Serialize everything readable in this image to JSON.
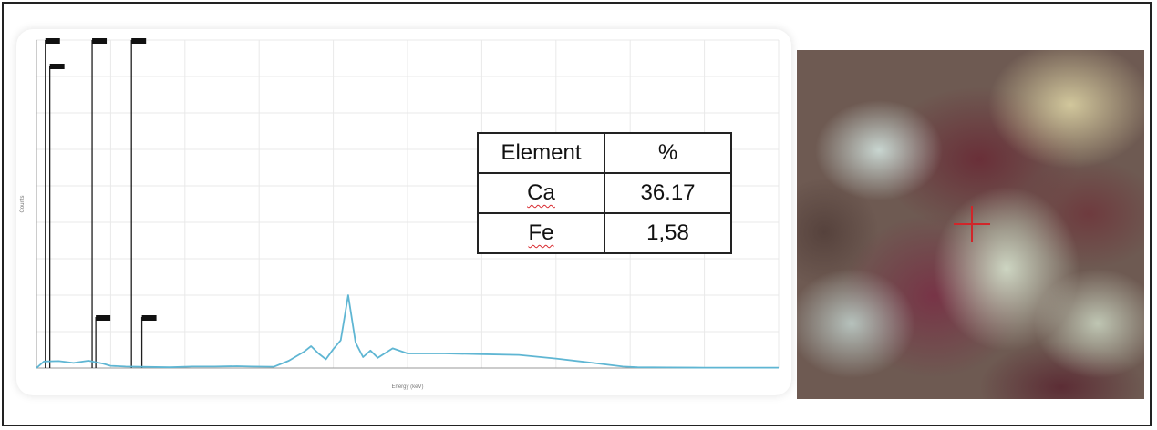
{
  "chart_data": {
    "type": "line",
    "xlabel": "Energy (keV)",
    "ylabel": "Counts",
    "xlim": [
      0,
      10
    ],
    "ylim": [
      0,
      4500
    ],
    "grid": true,
    "line_color": "#5fb6d3",
    "x": [
      0.0,
      0.1,
      0.3,
      0.5,
      0.7,
      0.9,
      1.0,
      1.2,
      1.5,
      1.8,
      2.1,
      2.4,
      2.7,
      2.9,
      3.2,
      3.4,
      3.6,
      3.7,
      3.8,
      3.9,
      4.0,
      4.1,
      4.2,
      4.3,
      4.4,
      4.5,
      4.6,
      4.8,
      5.0,
      5.5,
      6.0,
      6.5,
      7.0,
      7.5,
      7.9,
      8.1,
      8.5,
      9.0,
      9.5,
      10.0
    ],
    "y": [
      0,
      90,
      95,
      70,
      100,
      60,
      30,
      20,
      15,
      10,
      20,
      20,
      25,
      20,
      18,
      100,
      220,
      300,
      200,
      120,
      260,
      380,
      1000,
      350,
      150,
      240,
      140,
      270,
      200,
      200,
      190,
      180,
      130,
      70,
      20,
      10,
      8,
      5,
      5,
      5
    ],
    "peak_markers": [
      {
        "x": 0.12,
        "height": 4500,
        "label": "C Ka"
      },
      {
        "x": 0.18,
        "height": 4150,
        "label": "O Ka"
      },
      {
        "x": 0.75,
        "height": 4500,
        "label": "Ca La"
      },
      {
        "x": 0.8,
        "height": 700,
        "label": "Fe La"
      },
      {
        "x": 1.28,
        "height": 4500,
        "label": "Mg Ka"
      },
      {
        "x": 1.42,
        "height": 700,
        "label": "Al Ka"
      }
    ]
  },
  "table": {
    "headers": [
      "Element",
      "%"
    ],
    "rows": [
      {
        "element": "Ca",
        "value": "36.17"
      },
      {
        "element": "Fe",
        "value": "1,58"
      }
    ]
  },
  "photo": {
    "crosshair_color": "#d1262a"
  }
}
